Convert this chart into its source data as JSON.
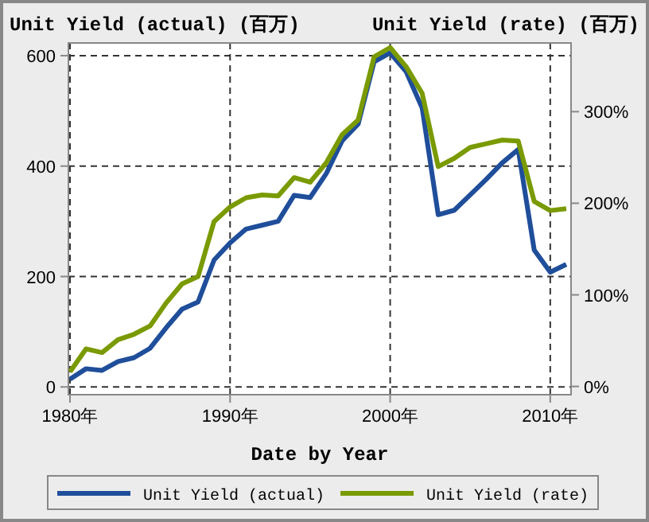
{
  "chart_data": {
    "type": "line",
    "xlabel": "Date by Year",
    "ylabel": "Unit Yield (actual) (百万)",
    "y2label": "Unit Yield (rate) (百万)",
    "x": [
      1980,
      1981,
      1982,
      1983,
      1984,
      1985,
      1986,
      1987,
      1988,
      1989,
      1990,
      1991,
      1992,
      1993,
      1994,
      1995,
      1996,
      1997,
      1998,
      1999,
      2000,
      2001,
      2002,
      2003,
      2004,
      2005,
      2006,
      2007,
      2008,
      2009,
      2010,
      2011
    ],
    "series": [
      {
        "name": "Unit Yield (actual)",
        "color": "#1f4e9a",
        "values": [
          14,
          33,
          30,
          46,
          53,
          70,
          107,
          141,
          154,
          230,
          261,
          286,
          293,
          300,
          347,
          343,
          386,
          446,
          476,
          589,
          605,
          571,
          505,
          312,
          320,
          348,
          376,
          406,
          430,
          248,
          208,
          222
        ]
      },
      {
        "name": "Unit Yield (rate)",
        "color": "#7a9a01",
        "axis": "y2",
        "values": [
          16,
          41,
          37,
          51,
          57,
          66,
          91,
          112,
          120,
          180,
          196,
          206,
          209,
          208,
          228,
          223,
          244,
          275,
          291,
          360,
          370,
          349,
          320,
          240,
          249,
          261,
          265,
          269,
          268,
          202,
          192,
          194
        ]
      }
    ],
    "xlim": [
      1979.9,
      2011.3
    ],
    "xticks": [
      {
        "value": 1980,
        "label": "1980年"
      },
      {
        "value": 1990,
        "label": "1990年"
      },
      {
        "value": 2000,
        "label": "2000年"
      },
      {
        "value": 2010,
        "label": "2010年"
      }
    ],
    "ylim": [
      -14,
      623
    ],
    "yticks": [
      0,
      200,
      400,
      600
    ],
    "y2lim": [
      -9,
      375
    ],
    "y2ticks": [
      {
        "value": 0,
        "label": "0%"
      },
      {
        "value": 100,
        "label": "100%"
      },
      {
        "value": 200,
        "label": "200%"
      },
      {
        "value": 300,
        "label": "300%"
      }
    ],
    "grid": true,
    "legend": "bottom",
    "line_style": "solid",
    "marker": "none"
  }
}
